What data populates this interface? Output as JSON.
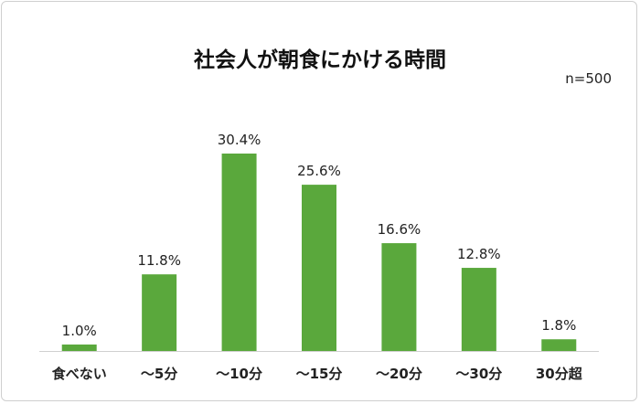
{
  "chart_data": {
    "type": "bar",
    "title": "社会人が朝食にかける時間",
    "note": "n=500",
    "categories": [
      "食べない",
      "～5分",
      "～10分",
      "～15分",
      "～20分",
      "～30分",
      "30分超"
    ],
    "values": [
      1.0,
      11.8,
      30.4,
      25.6,
      16.6,
      12.8,
      1.8
    ],
    "value_labels": [
      "1.0%",
      "11.8%",
      "30.4%",
      "25.6%",
      "16.6%",
      "12.8%",
      "1.8%"
    ],
    "ylim": [
      0,
      30.4
    ],
    "grid": false,
    "legend": "none",
    "bar_color": "#5aa83c"
  }
}
